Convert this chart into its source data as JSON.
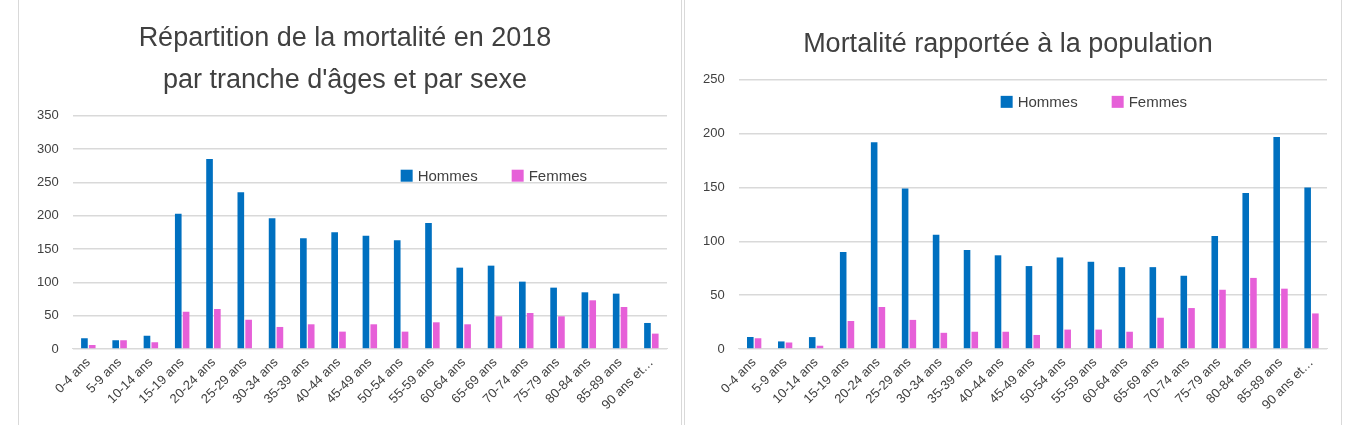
{
  "chart_data": [
    {
      "type": "bar",
      "title": "Répartition de la mortalité en 2018\npar tranche d'âges et par sexe",
      "categories": [
        "0-4 ans",
        "5-9 ans",
        "10-14 ans",
        "15-19 ans",
        "20-24 ans",
        "25-29 ans",
        "30-34 ans",
        "35-39 ans",
        "40-44 ans",
        "45-49 ans",
        "50-54 ans",
        "55-59 ans",
        "60-64 ans",
        "65-69 ans",
        "70-74 ans",
        "75-79 ans",
        "80-84 ans",
        "85-89 ans",
        "90 ans et…"
      ],
      "series": [
        {
          "name": "Hommes",
          "color": "#0070c0",
          "values": [
            16,
            13,
            20,
            203,
            285,
            235,
            196,
            166,
            175,
            170,
            163,
            189,
            122,
            125,
            101,
            92,
            85,
            83,
            39
          ]
        },
        {
          "name": "Femmes",
          "color": "#e660d8",
          "values": [
            6,
            13,
            10,
            56,
            60,
            44,
            33,
            37,
            26,
            37,
            26,
            40,
            37,
            49,
            54,
            49,
            73,
            63,
            23
          ]
        }
      ],
      "ylim": [
        0,
        350
      ],
      "yticks": [
        0,
        50,
        100,
        150,
        200,
        250,
        300,
        350
      ],
      "grid": "y",
      "legend": "top right"
    },
    {
      "type": "bar",
      "title": "Mortalité rapportée à la population",
      "categories": [
        "0-4 ans",
        "5-9 ans",
        "10-14 ans",
        "15-19 ans",
        "20-24 ans",
        "25-29 ans",
        "30-34 ans",
        "35-39 ans",
        "40-44 ans",
        "45-49 ans",
        "50-54 ans",
        "55-59 ans",
        "60-64 ans",
        "65-69 ans",
        "70-74 ans",
        "75-79 ans",
        "80-84 ans",
        "85-89 ans",
        "90 ans et…"
      ],
      "series": [
        {
          "name": "Hommes",
          "color": "#0070c0",
          "values": [
            11,
            7,
            11,
            90,
            192,
            149,
            106,
            92,
            87,
            77,
            85,
            81,
            76,
            76,
            68,
            105,
            145,
            197,
            150
          ]
        },
        {
          "name": "Femmes",
          "color": "#e660d8",
          "values": [
            10,
            6,
            3,
            26,
            39,
            27,
            15,
            16,
            16,
            13,
            18,
            18,
            16,
            29,
            38,
            55,
            66,
            56,
            33
          ]
        }
      ],
      "ylim": [
        0,
        250
      ],
      "yticks": [
        0,
        50,
        100,
        150,
        200,
        250
      ],
      "grid": "y",
      "legend": "top right"
    }
  ]
}
